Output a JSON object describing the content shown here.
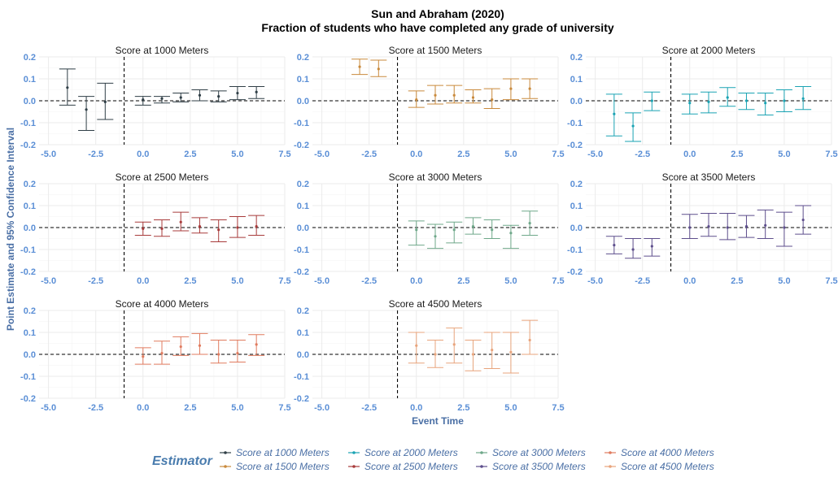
{
  "chart_data": {
    "type": "errorbar-facets",
    "title": "Sun and Abraham (2020)",
    "subtitle": "Fraction of students who have completed any grade of university",
    "xlabel": "Event Time",
    "ylabel": "Point Estimate and 95% Confidence Interval",
    "xlim": [
      -5.5,
      7.5
    ],
    "ylim": [
      -0.2,
      0.2
    ],
    "x_ticks": [
      "-5.0",
      "-2.5",
      "0.0",
      "2.5",
      "5.0",
      "7.5"
    ],
    "y_ticks": [
      "-0.2",
      "-0.1",
      "0.0",
      "0.1",
      "0.2"
    ],
    "vline_x": -1,
    "hline_y": 0,
    "legend": {
      "title": "Estimator",
      "position": "bottom"
    },
    "panels": [
      {
        "name": "Score at 1000 Meters",
        "color": "#2f3e46",
        "points": [
          {
            "x": -4,
            "y": 0.06,
            "lo": -0.02,
            "hi": 0.145
          },
          {
            "x": -3,
            "y": -0.04,
            "lo": -0.135,
            "hi": 0.02
          },
          {
            "x": -2,
            "y": -0.005,
            "lo": -0.085,
            "hi": 0.08
          },
          {
            "x": 0,
            "y": 0.005,
            "lo": -0.02,
            "hi": 0.02
          },
          {
            "x": 1,
            "y": 0.01,
            "lo": -0.01,
            "hi": 0.02
          },
          {
            "x": 2,
            "y": 0.015,
            "lo": -0.005,
            "hi": 0.035
          },
          {
            "x": 3,
            "y": 0.025,
            "lo": 0.0,
            "hi": 0.05
          },
          {
            "x": 4,
            "y": 0.02,
            "lo": -0.005,
            "hi": 0.045
          },
          {
            "x": 5,
            "y": 0.035,
            "lo": 0.005,
            "hi": 0.065
          },
          {
            "x": 6,
            "y": 0.04,
            "lo": 0.01,
            "hi": 0.065
          }
        ]
      },
      {
        "name": "Score at 1500 Meters",
        "color": "#c98a3c",
        "points": [
          {
            "x": -3,
            "y": 0.155,
            "lo": 0.12,
            "hi": 0.19
          },
          {
            "x": -2,
            "y": 0.145,
            "lo": 0.11,
            "hi": 0.185
          },
          {
            "x": 0,
            "y": 0.005,
            "lo": -0.03,
            "hi": 0.045
          },
          {
            "x": 1,
            "y": 0.025,
            "lo": -0.015,
            "hi": 0.07
          },
          {
            "x": 2,
            "y": 0.025,
            "lo": -0.01,
            "hi": 0.07
          },
          {
            "x": 3,
            "y": 0.015,
            "lo": -0.01,
            "hi": 0.05
          },
          {
            "x": 4,
            "y": 0.005,
            "lo": -0.035,
            "hi": 0.055
          },
          {
            "x": 5,
            "y": 0.055,
            "lo": 0.005,
            "hi": 0.1
          },
          {
            "x": 6,
            "y": 0.055,
            "lo": 0.01,
            "hi": 0.1
          }
        ]
      },
      {
        "name": "Score at 2000 Meters",
        "color": "#1aa3b3",
        "points": [
          {
            "x": -4,
            "y": -0.06,
            "lo": -0.16,
            "hi": 0.03
          },
          {
            "x": -3,
            "y": -0.115,
            "lo": -0.185,
            "hi": -0.055
          },
          {
            "x": -2,
            "y": 0.0,
            "lo": -0.045,
            "hi": 0.04
          },
          {
            "x": 0,
            "y": -0.01,
            "lo": -0.06,
            "hi": 0.03
          },
          {
            "x": 1,
            "y": -0.005,
            "lo": -0.055,
            "hi": 0.04
          },
          {
            "x": 2,
            "y": 0.015,
            "lo": -0.025,
            "hi": 0.06
          },
          {
            "x": 3,
            "y": 0.0,
            "lo": -0.04,
            "hi": 0.035
          },
          {
            "x": 4,
            "y": -0.01,
            "lo": -0.065,
            "hi": 0.035
          },
          {
            "x": 5,
            "y": 0.0,
            "lo": -0.05,
            "hi": 0.05
          },
          {
            "x": 6,
            "y": 0.01,
            "lo": -0.04,
            "hi": 0.065
          }
        ]
      },
      {
        "name": "Score at 2500 Meters",
        "color": "#a83b3b",
        "points": [
          {
            "x": 0,
            "y": -0.005,
            "lo": -0.035,
            "hi": 0.025
          },
          {
            "x": 1,
            "y": -0.005,
            "lo": -0.04,
            "hi": 0.035
          },
          {
            "x": 2,
            "y": 0.025,
            "lo": -0.015,
            "hi": 0.07
          },
          {
            "x": 3,
            "y": 0.005,
            "lo": -0.025,
            "hi": 0.045
          },
          {
            "x": 4,
            "y": -0.01,
            "lo": -0.065,
            "hi": 0.035
          },
          {
            "x": 5,
            "y": 0.0,
            "lo": -0.045,
            "hi": 0.05
          },
          {
            "x": 6,
            "y": 0.005,
            "lo": -0.035,
            "hi": 0.055
          }
        ]
      },
      {
        "name": "Score at 3000 Meters",
        "color": "#6fa88a",
        "points": [
          {
            "x": 0,
            "y": -0.01,
            "lo": -0.08,
            "hi": 0.03
          },
          {
            "x": 1,
            "y": -0.04,
            "lo": -0.095,
            "hi": 0.015
          },
          {
            "x": 2,
            "y": -0.01,
            "lo": -0.07,
            "hi": 0.025
          },
          {
            "x": 3,
            "y": 0.005,
            "lo": -0.03,
            "hi": 0.045
          },
          {
            "x": 4,
            "y": -0.01,
            "lo": -0.05,
            "hi": 0.035
          },
          {
            "x": 5,
            "y": -0.025,
            "lo": -0.095,
            "hi": 0.01
          },
          {
            "x": 6,
            "y": 0.02,
            "lo": -0.035,
            "hi": 0.075
          }
        ]
      },
      {
        "name": "Score at 3500 Meters",
        "color": "#5d4e8c",
        "points": [
          {
            "x": -4,
            "y": -0.08,
            "lo": -0.12,
            "hi": -0.04
          },
          {
            "x": -3,
            "y": -0.1,
            "lo": -0.14,
            "hi": -0.05
          },
          {
            "x": -2,
            "y": -0.085,
            "lo": -0.13,
            "hi": -0.05
          },
          {
            "x": 0,
            "y": 0.0,
            "lo": -0.05,
            "hi": 0.06
          },
          {
            "x": 1,
            "y": 0.005,
            "lo": -0.04,
            "hi": 0.065
          },
          {
            "x": 2,
            "y": 0.0,
            "lo": -0.055,
            "hi": 0.065
          },
          {
            "x": 3,
            "y": 0.005,
            "lo": -0.045,
            "hi": 0.055
          },
          {
            "x": 4,
            "y": 0.01,
            "lo": -0.05,
            "hi": 0.08
          },
          {
            "x": 5,
            "y": 0.0,
            "lo": -0.085,
            "hi": 0.07
          },
          {
            "x": 6,
            "y": 0.035,
            "lo": -0.03,
            "hi": 0.1
          }
        ]
      },
      {
        "name": "Score at 4000 Meters",
        "color": "#e07b5f",
        "points": [
          {
            "x": 0,
            "y": -0.01,
            "lo": -0.045,
            "hi": 0.03
          },
          {
            "x": 1,
            "y": 0.005,
            "lo": -0.045,
            "hi": 0.06
          },
          {
            "x": 2,
            "y": 0.035,
            "lo": -0.005,
            "hi": 0.08
          },
          {
            "x": 3,
            "y": 0.04,
            "lo": 0.0,
            "hi": 0.095
          },
          {
            "x": 4,
            "y": 0.0,
            "lo": -0.04,
            "hi": 0.065
          },
          {
            "x": 5,
            "y": 0.005,
            "lo": -0.035,
            "hi": 0.065
          },
          {
            "x": 6,
            "y": 0.045,
            "lo": -0.005,
            "hi": 0.09
          }
        ]
      },
      {
        "name": "Score at 4500 Meters",
        "color": "#e8a47c",
        "points": [
          {
            "x": 0,
            "y": 0.04,
            "lo": -0.04,
            "hi": 0.1
          },
          {
            "x": 1,
            "y": 0.0,
            "lo": -0.06,
            "hi": 0.065
          },
          {
            "x": 2,
            "y": 0.045,
            "lo": -0.04,
            "hi": 0.12
          },
          {
            "x": 3,
            "y": 0.0,
            "lo": -0.075,
            "hi": 0.065
          },
          {
            "x": 4,
            "y": 0.02,
            "lo": -0.065,
            "hi": 0.1
          },
          {
            "x": 5,
            "y": 0.01,
            "lo": -0.085,
            "hi": 0.1
          },
          {
            "x": 6,
            "y": 0.065,
            "lo": 0.0,
            "hi": 0.155
          }
        ]
      }
    ]
  }
}
